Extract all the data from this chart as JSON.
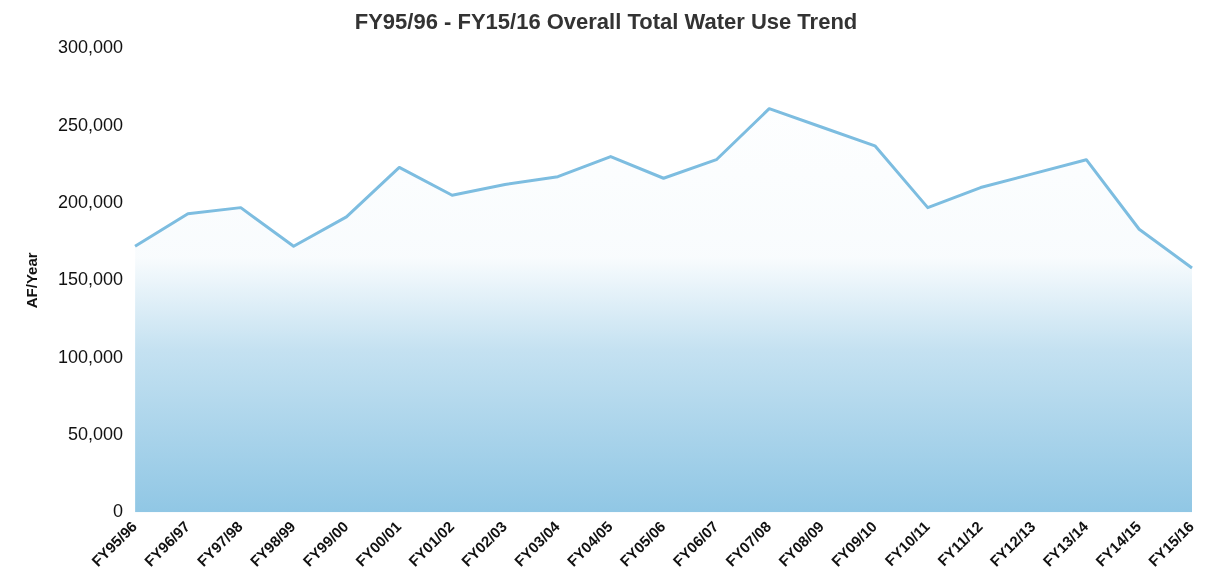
{
  "chart_data": {
    "type": "area",
    "title": "FY95/96 - FY15/16 Overall Total Water Use Trend",
    "ylabel": "AF/Year",
    "categories": [
      "FY95/96",
      "FY96/97",
      "FY97/98",
      "FY98/99",
      "FY99/00",
      "FY00/01",
      "FY01/02",
      "FY02/03",
      "FY03/04",
      "FY04/05",
      "FY05/06",
      "FY06/07",
      "FY07/08",
      "FY08/09",
      "FY09/10",
      "FY10/11",
      "FY11/12",
      "FY12/13",
      "FY13/14",
      "FY14/15",
      "FY15/16"
    ],
    "series": [
      {
        "color": "#7dbde0",
        "values": [
          172000,
          193000,
          197000,
          172000,
          191000,
          223000,
          205000,
          212000,
          217000,
          230000,
          216000,
          228000,
          261000,
          249000,
          237000,
          197000,
          210000,
          219000,
          228000,
          183000,
          158000
        ]
      }
    ],
    "ylim": [
      0,
      300000
    ],
    "yticks": [
      0,
      {
        "value": 50000,
        "label": "50,000"
      },
      {
        "value": 100000,
        "label": "100,000"
      },
      {
        "value": 150000,
        "label": "150,000"
      },
      {
        "value": 200000,
        "label": "200,000"
      },
      {
        "value": 250000,
        "label": "250,000"
      },
      {
        "value": 300000,
        "label": "300,000"
      }
    ],
    "grid": false,
    "legend": false,
    "marker": "none",
    "line_style": "solid"
  }
}
